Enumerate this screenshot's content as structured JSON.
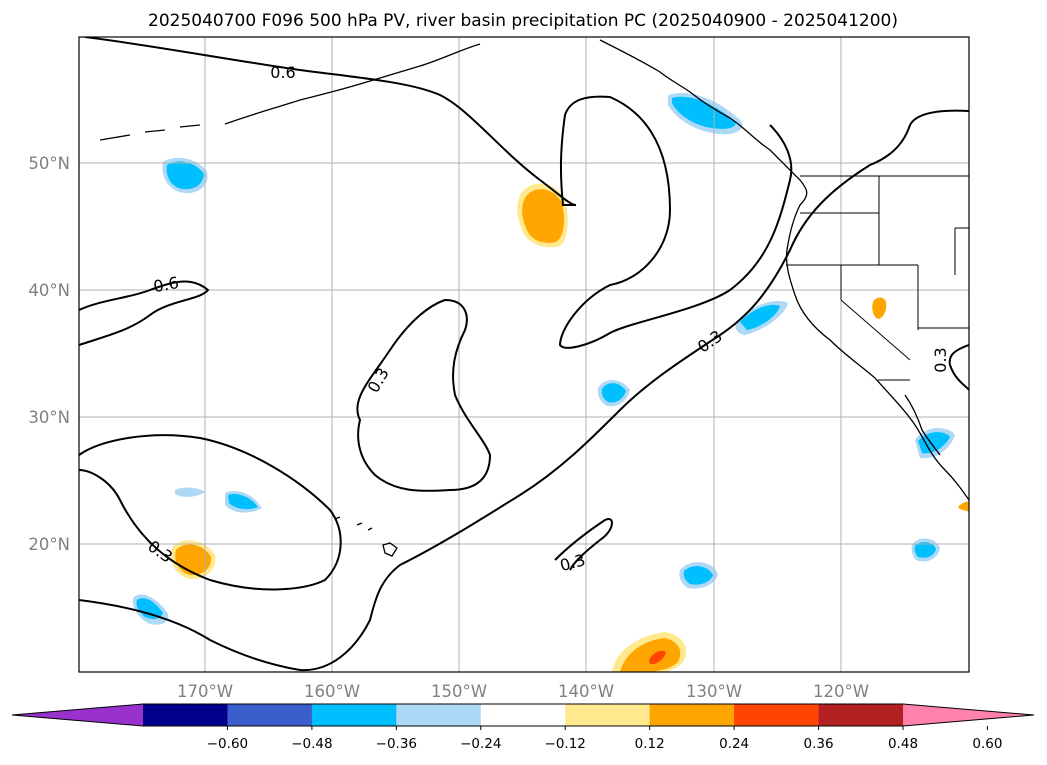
{
  "title": "2025040700 F096 500 hPa PV, river basin precipitation PC (2025040900 - 2025041200)",
  "latitude_labels": [
    "50°N",
    "40°N",
    "30°N",
    "20°N"
  ],
  "longitude_labels": [
    "170°W",
    "160°W",
    "150°W",
    "140°W",
    "130°W",
    "120°W"
  ],
  "contour_labels": [
    "0.6",
    "0.6",
    "0.3",
    "0.3",
    "0.3",
    "0.3",
    "0.3"
  ],
  "colorbar": {
    "ticks": [
      "−0.60",
      "−0.48",
      "−0.36",
      "−0.24",
      "−0.12",
      "0.12",
      "0.24",
      "0.36",
      "0.48",
      "0.60"
    ],
    "colors": [
      "#9932cc",
      "#00008b",
      "#3a5fcd",
      "#00bfff",
      "#add8f6",
      "#ffffff",
      "#ffe98f",
      "#ffa500",
      "#ff4500",
      "#b22222",
      "#ff82ab"
    ]
  },
  "colors": {
    "neg_medium": "#00bfff",
    "neg_light": "#add8f6",
    "pos_light": "#ffe98f",
    "pos_medium": "#ffa500",
    "pos_strong": "#ff4500",
    "contour": "#000000",
    "grid": "#b0b0b0"
  }
}
